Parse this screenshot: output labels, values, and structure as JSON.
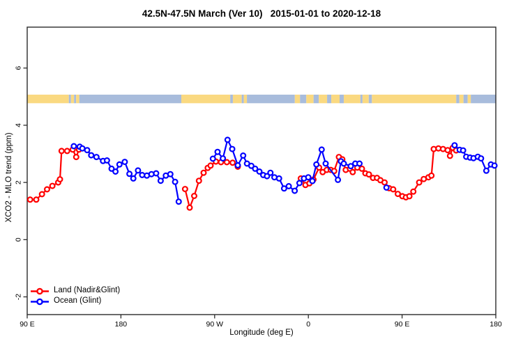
{
  "chart_data": {
    "type": "line",
    "title": "42.5N-47.5N March (Ver 10)   2015-01-01 to 2020-12-18",
    "xlabel": "Longitude (deg E)",
    "ylabel": "XCO2 - MLO trend (ppm)",
    "xlim": [
      90,
      540
    ],
    "ylim": [
      -2.62,
      7.43
    ],
    "grid": false,
    "x_ticks": [
      {
        "value": 90,
        "label": "90 E"
      },
      {
        "value": 180,
        "label": "180"
      },
      {
        "value": 270,
        "label": "90 W"
      },
      {
        "value": 360,
        "label": "0"
      },
      {
        "value": 450,
        "label": "90 E"
      },
      {
        "value": 540,
        "label": "180"
      }
    ],
    "y_ticks": [
      {
        "value": 6,
        "label": "6"
      },
      {
        "value": 4,
        "label": "4"
      },
      {
        "value": 2,
        "label": "2"
      },
      {
        "value": 0,
        "label": "0"
      },
      {
        "value": -2,
        "label": "-2"
      }
    ],
    "legend": {
      "position": "bottom-left",
      "entries": [
        {
          "label": "Land (Nadir&Glint)",
          "color": "#ff0000"
        },
        {
          "label": "Ocean (Glint)",
          "color": "#0000ff"
        }
      ]
    },
    "land_ocean_band": {
      "description": "land/ocean mask strip drawn across the plot",
      "y_range": [
        4.77,
        5.07
      ],
      "land_color": "#fad981",
      "ocean_color": "#a8bcdc",
      "segments": [
        {
          "from": 90,
          "to": 130,
          "surface": "land"
        },
        {
          "from": 130,
          "to": 132,
          "surface": "ocean"
        },
        {
          "from": 132,
          "to": 135,
          "surface": "land"
        },
        {
          "from": 135,
          "to": 137,
          "surface": "ocean"
        },
        {
          "from": 137,
          "to": 140,
          "surface": "land"
        },
        {
          "from": 140,
          "to": 238,
          "surface": "ocean"
        },
        {
          "from": 238,
          "to": 285,
          "surface": "land"
        },
        {
          "from": 285,
          "to": 287.5,
          "surface": "ocean"
        },
        {
          "from": 287.5,
          "to": 296,
          "surface": "land"
        },
        {
          "from": 296,
          "to": 298,
          "surface": "ocean"
        },
        {
          "from": 298,
          "to": 301,
          "surface": "land"
        },
        {
          "from": 301,
          "to": 347,
          "surface": "ocean"
        },
        {
          "from": 347,
          "to": 352,
          "surface": "land"
        },
        {
          "from": 352,
          "to": 358,
          "surface": "ocean"
        },
        {
          "from": 358,
          "to": 365,
          "surface": "land"
        },
        {
          "from": 365,
          "to": 370,
          "surface": "ocean"
        },
        {
          "from": 370,
          "to": 378,
          "surface": "land"
        },
        {
          "from": 378,
          "to": 382,
          "surface": "ocean"
        },
        {
          "from": 382,
          "to": 390,
          "surface": "land"
        },
        {
          "from": 390,
          "to": 394,
          "surface": "ocean"
        },
        {
          "from": 394,
          "to": 410,
          "surface": "land"
        },
        {
          "from": 410,
          "to": 412,
          "surface": "ocean"
        },
        {
          "from": 412,
          "to": 418,
          "surface": "land"
        },
        {
          "from": 418,
          "to": 421,
          "surface": "ocean"
        },
        {
          "from": 421,
          "to": 502,
          "surface": "land"
        },
        {
          "from": 502,
          "to": 505,
          "surface": "ocean"
        },
        {
          "from": 505,
          "to": 509,
          "surface": "land"
        },
        {
          "from": 509,
          "to": 513,
          "surface": "ocean"
        },
        {
          "from": 513,
          "to": 516,
          "surface": "land"
        },
        {
          "from": 516,
          "to": 540,
          "surface": "ocean"
        }
      ]
    },
    "series": [
      {
        "name": "Land (Nadir&Glint)",
        "color": "#ff0000",
        "points": [
          [
            92.8,
            1.4
          ],
          [
            98.7,
            1.4
          ],
          [
            104.2,
            1.59
          ],
          [
            109.1,
            1.76
          ],
          [
            114.2,
            1.88
          ],
          [
            119.8,
            2.0
          ],
          [
            121.5,
            2.11
          ],
          [
            123.0,
            3.1
          ],
          [
            128.4,
            3.1
          ],
          [
            133.7,
            3.15
          ],
          [
            137.1,
            2.89
          ],
          [
            139.7,
            3.15
          ],
          [
            241.6,
            1.77
          ],
          [
            246.0,
            1.12
          ],
          [
            250.4,
            1.53
          ],
          [
            254.9,
            2.06
          ],
          [
            259.4,
            2.34
          ],
          [
            263.4,
            2.51
          ],
          [
            266.1,
            2.59
          ],
          [
            271.2,
            2.73
          ],
          [
            276.1,
            2.71
          ],
          [
            281.7,
            2.71
          ],
          [
            287.3,
            2.69
          ],
          [
            292.2,
            2.55
          ],
          [
            352.8,
            2.14
          ],
          [
            357.2,
            1.91
          ],
          [
            361.0,
            1.97
          ],
          [
            364.9,
            2.1
          ],
          [
            370.3,
            2.52
          ],
          [
            373.7,
            2.36
          ],
          [
            377.7,
            2.44
          ],
          [
            381.5,
            2.44
          ],
          [
            384.8,
            2.4
          ],
          [
            389.3,
            2.89
          ],
          [
            392.6,
            2.81
          ],
          [
            395.9,
            2.44
          ],
          [
            399.9,
            2.48
          ],
          [
            402.6,
            2.36
          ],
          [
            407.0,
            2.52
          ],
          [
            411.4,
            2.48
          ],
          [
            414.8,
            2.32
          ],
          [
            418.1,
            2.28
          ],
          [
            422.1,
            2.16
          ],
          [
            425.9,
            2.16
          ],
          [
            429.2,
            2.08
          ],
          [
            433.2,
            2.0
          ],
          [
            437.6,
            1.8
          ],
          [
            441.4,
            1.76
          ],
          [
            445.9,
            1.6
          ],
          [
            450.3,
            1.52
          ],
          [
            453.7,
            1.48
          ],
          [
            457.0,
            1.52
          ],
          [
            460.8,
            1.68
          ],
          [
            466.4,
            2.0
          ],
          [
            470.8,
            2.12
          ],
          [
            475.3,
            2.18
          ],
          [
            478.2,
            2.24
          ],
          [
            480.4,
            3.17
          ],
          [
            484.9,
            3.19
          ],
          [
            489.3,
            3.17
          ],
          [
            493.8,
            3.13
          ],
          [
            496.0,
            2.93
          ],
          [
            498.6,
            3.21
          ],
          [
            501.9,
            3.12
          ]
        ]
      },
      {
        "name": "Ocean (Glint)",
        "color": "#0000ff",
        "points": [
          [
            134.8,
            3.27
          ],
          [
            140.4,
            3.25
          ],
          [
            143.0,
            3.19
          ],
          [
            147.6,
            3.13
          ],
          [
            151.5,
            2.95
          ],
          [
            156.5,
            2.89
          ],
          [
            162.8,
            2.75
          ],
          [
            166.6,
            2.77
          ],
          [
            171.0,
            2.48
          ],
          [
            174.8,
            2.38
          ],
          [
            178.6,
            2.63
          ],
          [
            183.7,
            2.72
          ],
          [
            188.2,
            2.3
          ],
          [
            191.9,
            2.14
          ],
          [
            196.4,
            2.42
          ],
          [
            200.4,
            2.26
          ],
          [
            204.9,
            2.24
          ],
          [
            209.3,
            2.29
          ],
          [
            213.8,
            2.32
          ],
          [
            218.2,
            2.06
          ],
          [
            223.1,
            2.24
          ],
          [
            227.5,
            2.29
          ],
          [
            232.0,
            2.02
          ],
          [
            235.5,
            1.33
          ],
          [
            268.3,
            2.83
          ],
          [
            272.8,
            3.07
          ],
          [
            277.9,
            2.84
          ],
          [
            282.4,
            3.49
          ],
          [
            286.9,
            3.17
          ],
          [
            292.2,
            2.6
          ],
          [
            297.4,
            2.94
          ],
          [
            301.1,
            2.66
          ],
          [
            305.2,
            2.58
          ],
          [
            308.9,
            2.48
          ],
          [
            313.0,
            2.38
          ],
          [
            316.7,
            2.26
          ],
          [
            320.3,
            2.22
          ],
          [
            323.6,
            2.34
          ],
          [
            327.4,
            2.18
          ],
          [
            331.9,
            2.14
          ],
          [
            336.7,
            1.79
          ],
          [
            341.2,
            1.87
          ],
          [
            346.9,
            1.71
          ],
          [
            351.4,
            1.98
          ],
          [
            355.8,
            2.14
          ],
          [
            359.9,
            2.18
          ],
          [
            363.9,
            2.05
          ],
          [
            367.7,
            2.63
          ],
          [
            372.8,
            3.15
          ],
          [
            376.6,
            2.66
          ],
          [
            388.4,
            2.09
          ],
          [
            391.3,
            2.74
          ],
          [
            394.0,
            2.66
          ],
          [
            400.7,
            2.57
          ],
          [
            405.1,
            2.66
          ],
          [
            409.1,
            2.66
          ],
          [
            435.0,
            1.82
          ],
          [
            500.4,
            3.3
          ],
          [
            505.3,
            3.14
          ],
          [
            508.6,
            3.12
          ],
          [
            511.6,
            2.9
          ],
          [
            515.3,
            2.87
          ],
          [
            518.6,
            2.85
          ],
          [
            522.7,
            2.9
          ],
          [
            525.8,
            2.84
          ],
          [
            530.9,
            2.41
          ],
          [
            535.3,
            2.63
          ],
          [
            538.7,
            2.59
          ]
        ]
      }
    ]
  }
}
